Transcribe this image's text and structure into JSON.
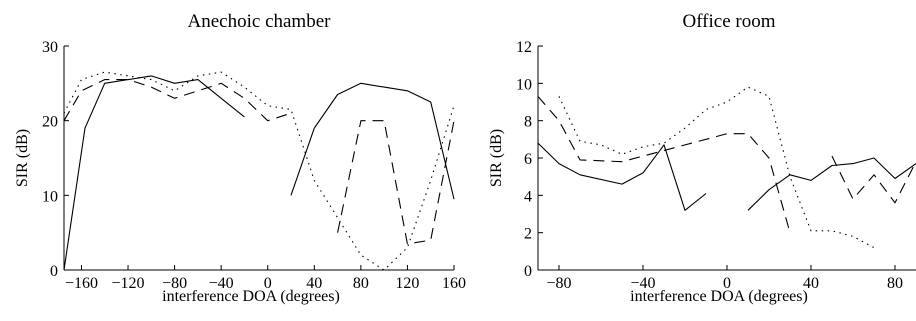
{
  "chart_data": [
    {
      "type": "line",
      "title": "Anechoic chamber",
      "xlabel": "interference DOA (degrees)",
      "ylabel": "SIR (dB)",
      "xlim": [
        -175,
        160
      ],
      "ylim": [
        0,
        30
      ],
      "xticks": [
        -160,
        -120,
        -80,
        -40,
        0,
        40,
        80,
        120,
        160
      ],
      "xtick_labels": [
        "−160",
        "−120",
        "−80",
        "−40",
        "0",
        "40",
        "80",
        "120",
        "160"
      ],
      "yticks": [
        0,
        10,
        20,
        30
      ],
      "ytick_labels": [
        "0",
        "10",
        "20",
        "30"
      ],
      "grid": false,
      "series": [
        {
          "style": "solid",
          "segments": [
            [
              [
                -175,
                0
              ],
              [
                -157,
                19
              ],
              [
                -140,
                25
              ],
              [
                -100,
                26
              ],
              [
                -80,
                25
              ],
              [
                -60,
                25.5
              ],
              [
                -40,
                23
              ],
              [
                -20,
                20.5
              ]
            ],
            [
              [
                20,
                10
              ],
              [
                40,
                19
              ],
              [
                60,
                23.5
              ],
              [
                80,
                25
              ],
              [
                100,
                24.5
              ],
              [
                120,
                24
              ],
              [
                140,
                22.5
              ],
              [
                160,
                9.5
              ]
            ]
          ]
        },
        {
          "style": "dashed",
          "segments": [
            [
              [
                -175,
                20
              ],
              [
                -160,
                24
              ],
              [
                -140,
                25.5
              ],
              [
                -120,
                25.5
              ],
              [
                -100,
                24.5
              ],
              [
                -80,
                23
              ],
              [
                -60,
                24
              ],
              [
                -40,
                25
              ],
              [
                -20,
                23
              ],
              [
                0,
                20
              ],
              [
                20,
                21
              ]
            ],
            [
              [
                60,
                5
              ],
              [
                80,
                20
              ],
              [
                100,
                20
              ],
              [
                120,
                3.5
              ],
              [
                140,
                4
              ],
              [
                160,
                20
              ]
            ]
          ]
        },
        {
          "style": "dotted",
          "segments": [
            [
              [
                -175,
                21
              ],
              [
                -160,
                25.5
              ],
              [
                -140,
                26.5
              ],
              [
                -120,
                26
              ],
              [
                -100,
                25.5
              ],
              [
                -80,
                24
              ],
              [
                -60,
                26
              ],
              [
                -40,
                26.5
              ],
              [
                -20,
                24.5
              ],
              [
                0,
                22
              ],
              [
                20,
                21.5
              ],
              [
                40,
                12
              ],
              [
                60,
                7
              ],
              [
                80,
                2
              ],
              [
                100,
                0
              ],
              [
                120,
                3
              ],
              [
                140,
                12
              ],
              [
                160,
                22
              ]
            ]
          ]
        }
      ]
    },
    {
      "type": "line",
      "title": "Office room",
      "xlabel": "interference DOA (degrees)",
      "ylabel": "SIR (dB)",
      "xlim": [
        -90,
        90
      ],
      "ylim": [
        0,
        12
      ],
      "xticks": [
        -80,
        -40,
        0,
        40,
        80
      ],
      "xtick_labels": [
        "−80",
        "−40",
        "0",
        "40",
        "80"
      ],
      "yticks": [
        0,
        2,
        4,
        6,
        8,
        10,
        12
      ],
      "ytick_labels": [
        "0",
        "2",
        "4",
        "6",
        "8",
        "10",
        "12"
      ],
      "grid": false,
      "series": [
        {
          "style": "solid",
          "segments": [
            [
              [
                -90,
                6.8
              ],
              [
                -80,
                5.7
              ],
              [
                -70,
                5.1
              ],
              [
                -50,
                4.6
              ],
              [
                -40,
                5.2
              ],
              [
                -30,
                6.7
              ],
              [
                -20,
                3.2
              ],
              [
                -10,
                4.1
              ]
            ],
            [
              [
                10,
                3.2
              ],
              [
                20,
                4.3
              ],
              [
                30,
                5.1
              ],
              [
                40,
                4.8
              ],
              [
                50,
                5.6
              ],
              [
                60,
                5.7
              ],
              [
                70,
                6.0
              ],
              [
                80,
                4.9
              ],
              [
                90,
                5.7
              ]
            ]
          ]
        },
        {
          "style": "dashed",
          "segments": [
            [
              [
                -90,
                9.3
              ],
              [
                -80,
                8.0
              ],
              [
                -70,
                5.9
              ],
              [
                -50,
                5.8
              ],
              [
                -40,
                6.1
              ],
              [
                -30,
                6.4
              ],
              [
                0,
                7.3
              ],
              [
                10,
                7.3
              ],
              [
                20,
                6.0
              ],
              [
                30,
                2.0
              ]
            ],
            [
              [
                50,
                6.1
              ],
              [
                60,
                3.8
              ],
              [
                70,
                5.1
              ],
              [
                80,
                3.6
              ],
              [
                90,
                5.8
              ]
            ]
          ]
        },
        {
          "style": "dotted",
          "segments": [
            [
              [
                -80,
                9.3
              ],
              [
                -70,
                6.9
              ],
              [
                -60,
                6.7
              ],
              [
                -50,
                6.2
              ],
              [
                -40,
                6.6
              ],
              [
                -30,
                6.8
              ],
              [
                -20,
                7.6
              ],
              [
                -10,
                8.6
              ],
              [
                0,
                9.0
              ],
              [
                10,
                9.8
              ],
              [
                20,
                9.3
              ],
              [
                30,
                5.0
              ],
              [
                40,
                2.1
              ],
              [
                50,
                2.1
              ],
              [
                60,
                1.8
              ],
              [
                70,
                1.2
              ]
            ]
          ]
        }
      ]
    }
  ]
}
